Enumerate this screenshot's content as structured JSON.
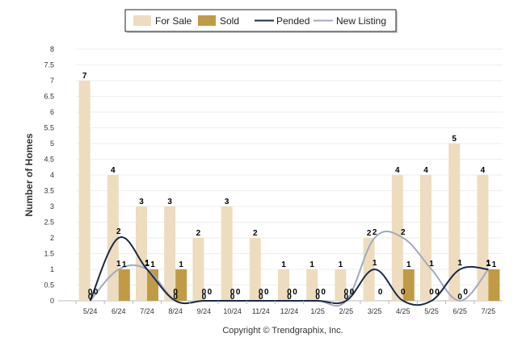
{
  "chart_data": {
    "type": "bar",
    "categories": [
      "5/24",
      "6/24",
      "7/24",
      "8/24",
      "9/24",
      "10/24",
      "11/24",
      "12/24",
      "1/25",
      "2/25",
      "3/25",
      "4/25",
      "5/25",
      "6/25",
      "7/25"
    ],
    "series": [
      {
        "name": "For Sale",
        "type": "bar",
        "color": "#eddcbf",
        "values": [
          7,
          4,
          3,
          3,
          2,
          3,
          2,
          1,
          1,
          1,
          2,
          4,
          4,
          5,
          4
        ]
      },
      {
        "name": "Sold",
        "type": "bar",
        "color": "#c19a45",
        "values": [
          0,
          1,
          1,
          1,
          0,
          0,
          0,
          0,
          0,
          0,
          0,
          1,
          0,
          0,
          1
        ]
      },
      {
        "name": "Pended",
        "type": "line",
        "color": "#1b2a47",
        "values": [
          0,
          2,
          1,
          0,
          0,
          0,
          0,
          0,
          0,
          0,
          1,
          0,
          0,
          1,
          1
        ]
      },
      {
        "name": "New Listing",
        "type": "line",
        "color": "#a3a9bd",
        "values": [
          0,
          1,
          1,
          0,
          0,
          0,
          0,
          0,
          0,
          0,
          2,
          2,
          1,
          0,
          1
        ]
      }
    ],
    "ylabel": "Number of Homes",
    "xlabel": "",
    "ylim": [
      0,
      8
    ],
    "yticks": [
      "0",
      "0.5",
      "1",
      "1.5",
      "2",
      "2.5",
      "3",
      "3.5",
      "4",
      "4.5",
      "5",
      "5.5",
      "6",
      "6.5",
      "7",
      "7.5",
      "8"
    ],
    "legend_position": "top-center",
    "grid": true
  },
  "footer": {
    "copyright": "Copyright © Trendgraphix, Inc."
  }
}
